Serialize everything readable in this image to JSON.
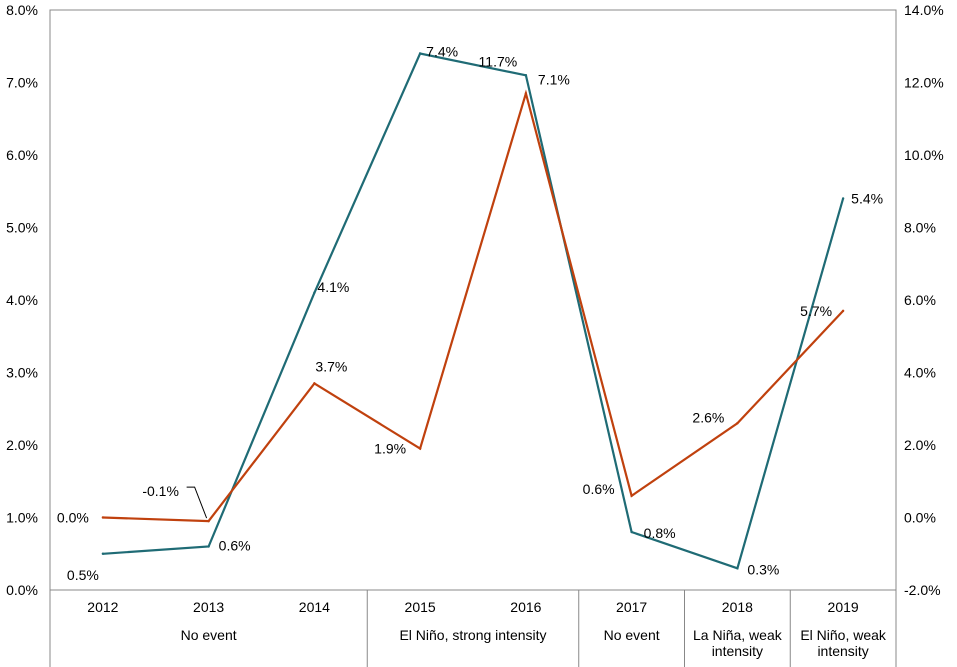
{
  "chart_data": {
    "type": "line",
    "categories": [
      "2012",
      "2013",
      "2014",
      "2015",
      "2016",
      "2017",
      "2018",
      "2019"
    ],
    "groups": [
      {
        "label": "No event",
        "lines": [
          "No event"
        ],
        "span": [
          0,
          2
        ]
      },
      {
        "label": "El Niño, strong intensity",
        "lines": [
          "El Niño, strong intensity"
        ],
        "span": [
          3,
          4
        ]
      },
      {
        "label": "No event",
        "lines": [
          "No event"
        ],
        "span": [
          5,
          5
        ]
      },
      {
        "label": "La Niña, weak intensity",
        "lines": [
          "La Niña, weak",
          "intensity"
        ],
        "span": [
          6,
          6
        ]
      },
      {
        "label": "El Niño, weak intensity",
        "lines": [
          "El Niño, weak",
          "intensity"
        ],
        "span": [
          7,
          7
        ]
      }
    ],
    "series": [
      {
        "name": "left-axis series",
        "axis": "left",
        "color": "#1F6B75",
        "values": [
          0.5,
          0.6,
          4.1,
          7.4,
          7.1,
          0.8,
          0.3,
          5.4
        ],
        "labels": [
          "0.5%",
          "0.6%",
          "4.1%",
          "7.4%",
          "7.1%",
          "0.8%",
          "0.3%",
          "5.4%"
        ]
      },
      {
        "name": "right-axis series",
        "axis": "right",
        "color": "#C0410E",
        "values": [
          0.0,
          -0.1,
          3.7,
          1.9,
          11.7,
          0.6,
          2.6,
          5.7
        ],
        "labels": [
          "0.0%",
          "-0.1%",
          "3.7%",
          "1.9%",
          "11.7%",
          "0.6%",
          "2.6%",
          "5.7%"
        ]
      }
    ],
    "yleft": {
      "min": 0,
      "max": 8,
      "step": 1,
      "ticks": [
        "0.0%",
        "1.0%",
        "2.0%",
        "3.0%",
        "4.0%",
        "5.0%",
        "6.0%",
        "7.0%",
        "8.0%"
      ]
    },
    "yright": {
      "min": -2,
      "max": 14,
      "step": 2,
      "ticks": [
        "-2.0%",
        "0.0%",
        "2.0%",
        "4.0%",
        "6.0%",
        "8.0%",
        "10.0%",
        "12.0%",
        "14.0%"
      ]
    },
    "title": "",
    "xlabel": "",
    "ylabel": ""
  }
}
